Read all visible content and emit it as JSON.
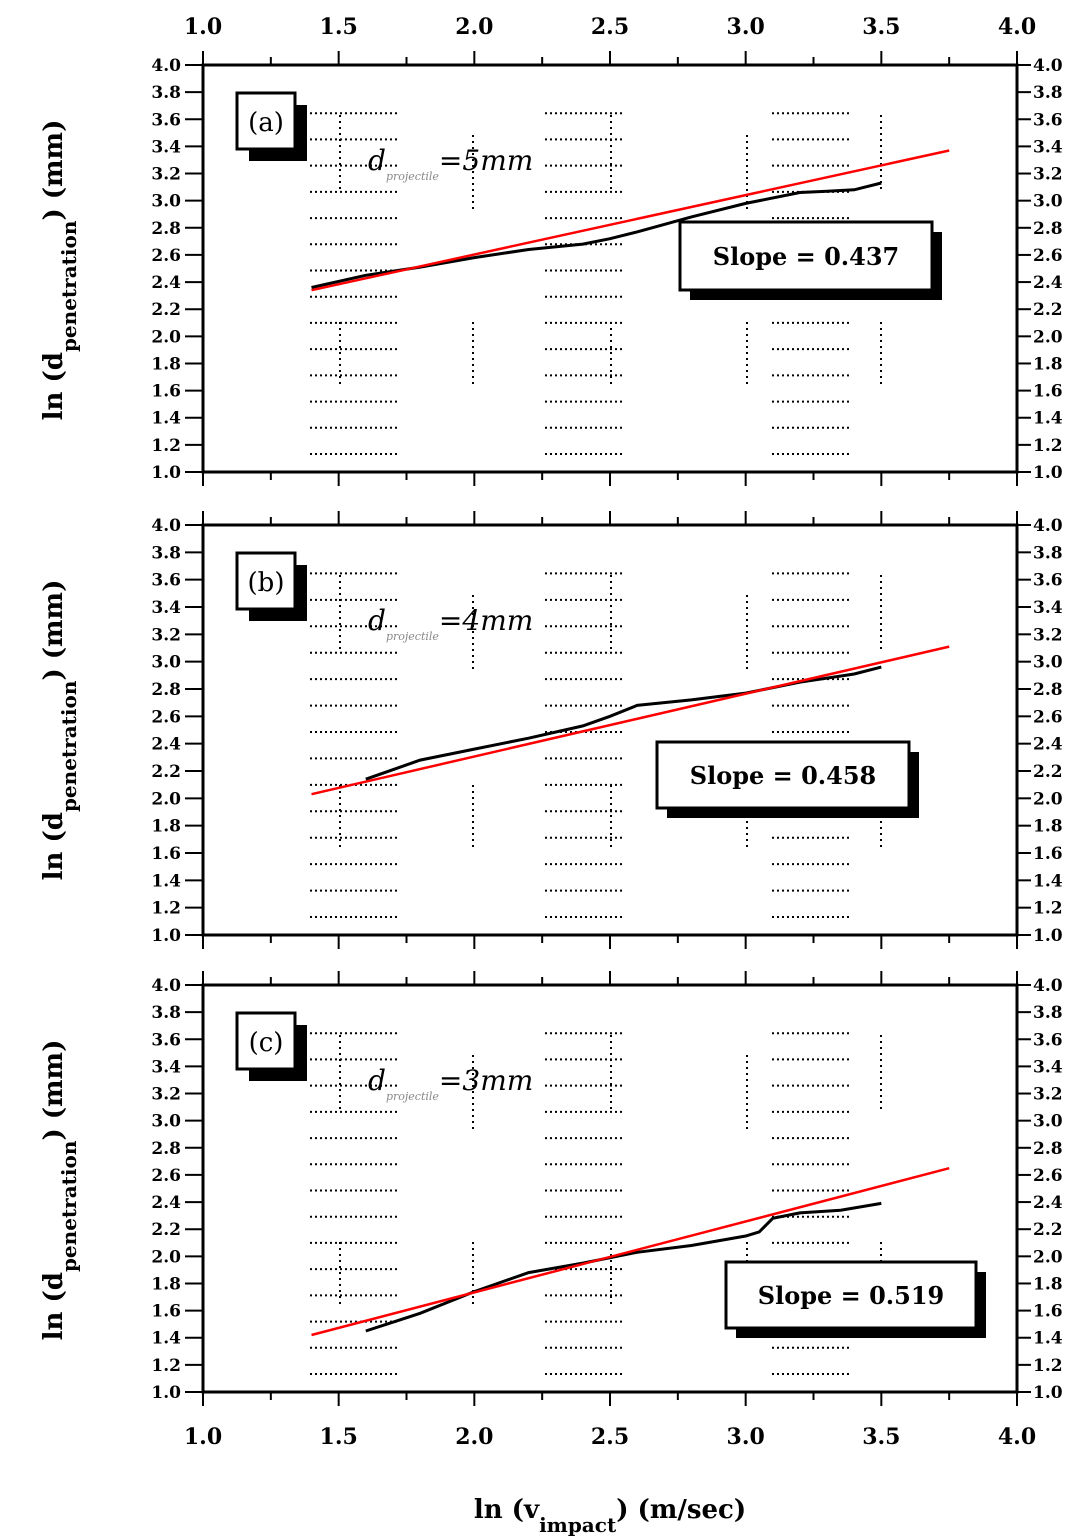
{
  "figure": {
    "xlabel_main": "ln (v",
    "xlabel_sub": "impact",
    "xlabel_unit": ") (m/sec)",
    "ylabel_main": "ln (d",
    "ylabel_sub": "penetration",
    "ylabel_unit": ") (mm)"
  },
  "chart_data": [
    {
      "type": "line",
      "panel_label": "(a)",
      "annotation_var": "d",
      "annotation_sub": "projectile",
      "annotation_value": "=5mm",
      "slope_text": "Slope = 0.437",
      "xlim": [
        1.0,
        4.0
      ],
      "ylim": [
        1.0,
        4.0
      ],
      "x_ticks": [
        1.0,
        1.5,
        2.0,
        2.5,
        3.0,
        3.5,
        4.0
      ],
      "x_tick_labels": [
        "1.0",
        "1.5",
        "2.0",
        "2.5",
        "3.0",
        "3.5",
        "4.0"
      ],
      "y_tick_labels": [
        "1.0",
        "1.2",
        "1.4",
        "1.6",
        "1.8",
        "2.0",
        "2.2",
        "2.4",
        "2.6",
        "2.8",
        "3.0",
        "3.2",
        "3.4",
        "3.6",
        "3.8",
        "4.0"
      ],
      "series": [
        {
          "color": "#000000",
          "x": [
            1.4,
            1.6,
            1.8,
            2.0,
            2.2,
            2.4,
            2.5,
            2.6,
            2.8,
            3.0,
            3.2,
            3.3,
            3.4,
            3.5
          ],
          "y": [
            2.36,
            2.45,
            2.51,
            2.58,
            2.64,
            2.68,
            2.72,
            2.77,
            2.88,
            2.98,
            3.06,
            3.07,
            3.08,
            3.13
          ]
        },
        {
          "color": "#ff0000",
          "x": [
            1.4,
            3.75
          ],
          "y": [
            2.34,
            3.37
          ]
        }
      ]
    },
    {
      "type": "line",
      "panel_label": "(b)",
      "annotation_var": "d",
      "annotation_sub": "projectile",
      "annotation_value": "=4mm",
      "slope_text": "Slope = 0.458",
      "xlim": [
        1.0,
        4.0
      ],
      "ylim": [
        1.0,
        4.0
      ],
      "x_ticks": [
        1.0,
        1.5,
        2.0,
        2.5,
        3.0,
        3.5,
        4.0
      ],
      "x_tick_labels": [
        "1.0",
        "1.5",
        "2.0",
        "2.5",
        "3.0",
        "3.5",
        "4.0"
      ],
      "y_tick_labels": [
        "1.0",
        "1.2",
        "1.4",
        "1.6",
        "1.8",
        "2.0",
        "2.2",
        "2.4",
        "2.6",
        "2.8",
        "3.0",
        "3.2",
        "3.4",
        "3.6",
        "3.8",
        "4.0"
      ],
      "series": [
        {
          "color": "#000000",
          "x": [
            1.6,
            1.8,
            2.0,
            2.2,
            2.4,
            2.5,
            2.6,
            2.8,
            3.0,
            3.2,
            3.4,
            3.5
          ],
          "y": [
            2.14,
            2.28,
            2.36,
            2.44,
            2.53,
            2.6,
            2.68,
            2.72,
            2.77,
            2.85,
            2.91,
            2.96
          ]
        },
        {
          "color": "#ff0000",
          "x": [
            1.4,
            3.75
          ],
          "y": [
            2.03,
            3.11
          ]
        }
      ]
    },
    {
      "type": "line",
      "panel_label": "(c)",
      "annotation_var": "d",
      "annotation_sub": "projectile",
      "annotation_value": "=3mm",
      "slope_text": "Slope = 0.519",
      "xlim": [
        1.0,
        4.0
      ],
      "ylim": [
        1.0,
        4.0
      ],
      "x_ticks": [
        1.0,
        1.5,
        2.0,
        2.5,
        3.0,
        3.5,
        4.0
      ],
      "x_tick_labels": [
        "1.0",
        "1.5",
        "2.0",
        "2.5",
        "3.0",
        "3.5",
        "4.0"
      ],
      "y_tick_labels": [
        "1.0",
        "1.2",
        "1.4",
        "1.6",
        "1.8",
        "2.0",
        "2.2",
        "2.4",
        "2.6",
        "2.8",
        "3.0",
        "3.2",
        "3.4",
        "3.6",
        "3.8",
        "4.0"
      ],
      "series": [
        {
          "color": "#000000",
          "x": [
            1.6,
            1.8,
            2.0,
            2.2,
            2.4,
            2.6,
            2.8,
            3.0,
            3.05,
            3.1,
            3.2,
            3.35,
            3.5
          ],
          "y": [
            1.45,
            1.58,
            1.74,
            1.88,
            1.95,
            2.03,
            2.08,
            2.15,
            2.18,
            2.28,
            2.32,
            2.34,
            2.39
          ]
        },
        {
          "color": "#ff0000",
          "x": [
            1.4,
            3.75
          ],
          "y": [
            1.42,
            2.65
          ]
        }
      ]
    }
  ]
}
